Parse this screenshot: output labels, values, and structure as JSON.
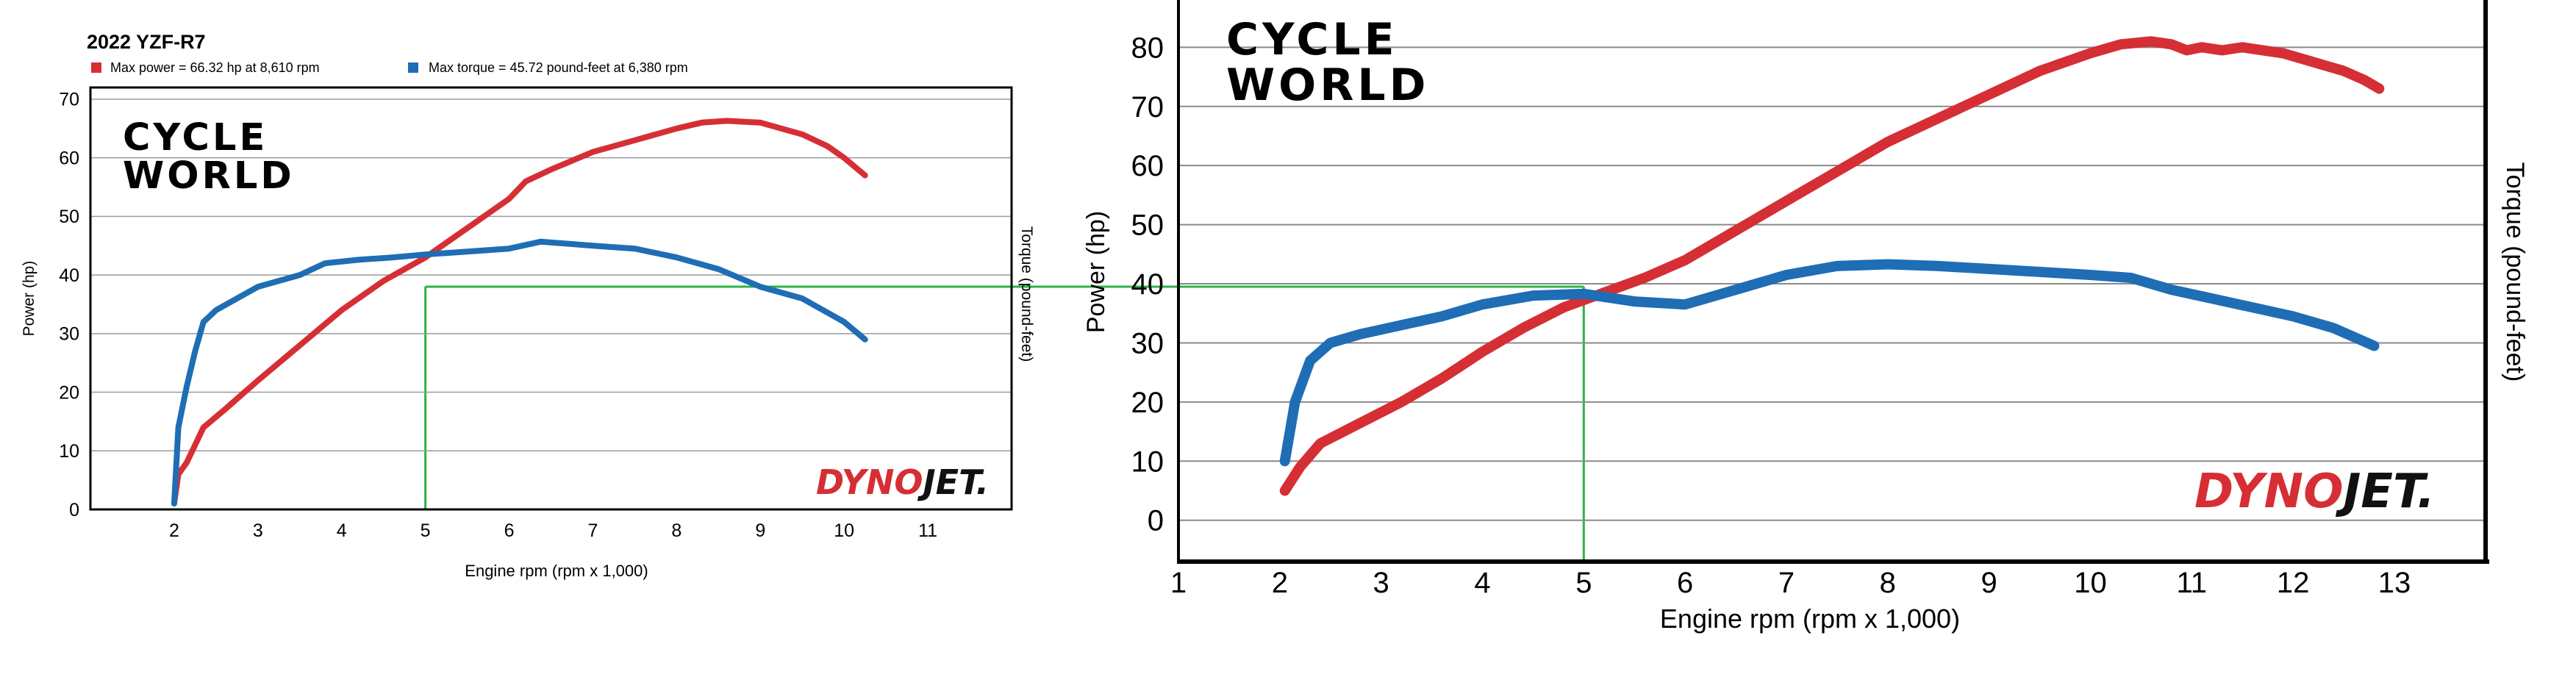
{
  "chart_data": [
    {
      "type": "line",
      "title": "2022 YZF-R7",
      "xlabel": "Engine rpm (rpm x 1,000)",
      "ylabel": "Power (hp)",
      "y2label": "Torque (pound-feet)",
      "xlim": [
        1,
        12
      ],
      "ylim": [
        0,
        72
      ],
      "x_ticks": [
        "2",
        "3",
        "4",
        "5",
        "6",
        "7",
        "8",
        "9",
        "10",
        "11"
      ],
      "y_ticks": [
        "0",
        "10",
        "20",
        "30",
        "40",
        "50",
        "60",
        "70"
      ],
      "grid": true,
      "legend_position": "top-left",
      "legend": [
        {
          "text": "Max power = 66.32 hp at 8,610 rpm",
          "color": "#d62e35"
        },
        {
          "text": "Max torque = 45.72 pound-feet at 6,380 rpm",
          "color": "#1f6db5"
        }
      ],
      "brand": [
        "CYCLE",
        "WORLD"
      ],
      "logo": [
        "DYNO",
        "JET",
        "."
      ],
      "series": [
        {
          "color": "#d62e35",
          "x": [
            2.0,
            2.05,
            2.15,
            2.25,
            2.35,
            2.6,
            3.0,
            3.5,
            4.0,
            4.5,
            5.0,
            5.5,
            6.0,
            6.2,
            6.5,
            7.0,
            7.5,
            8.0,
            8.3,
            8.6,
            9.0,
            9.5,
            9.8,
            10.0,
            10.25
          ],
          "y": [
            1,
            6,
            8,
            11,
            14,
            17,
            22,
            28,
            34,
            39,
            43,
            48,
            53,
            56,
            58,
            61,
            63,
            65,
            66,
            66.3,
            66,
            64,
            62,
            60,
            57
          ]
        },
        {
          "color": "#1f6db5",
          "x": [
            2.0,
            2.05,
            2.15,
            2.25,
            2.35,
            2.5,
            3.0,
            3.5,
            3.8,
            4.2,
            4.6,
            5.0,
            5.5,
            6.0,
            6.38,
            7.0,
            7.5,
            8.0,
            8.5,
            9.0,
            9.5,
            10.0,
            10.25
          ],
          "y": [
            1,
            14,
            21,
            27,
            32,
            34,
            38,
            40,
            42,
            42.6,
            43,
            43.5,
            44,
            44.5,
            45.7,
            45,
            44.5,
            43,
            41,
            38,
            36,
            32,
            29
          ]
        }
      ],
      "annotations": [
        {
          "type": "horizontal-line",
          "y": 38,
          "x_from": 5,
          "color": "#2db34a"
        },
        {
          "type": "vertical-line",
          "x": 5,
          "y_from": 0,
          "y_to": 38,
          "color": "#2db34a"
        }
      ]
    },
    {
      "type": "line",
      "title": "",
      "xlabel": "Engine rpm (rpm x 1,000)",
      "ylabel": "Power (hp)",
      "y2label": "Torque (pound-feet)",
      "xlim": [
        1,
        13.9
      ],
      "ylim": [
        -7,
        88
      ],
      "x_ticks": [
        "1",
        "2",
        "3",
        "4",
        "5",
        "6",
        "7",
        "8",
        "9",
        "10",
        "11",
        "12",
        "13"
      ],
      "y_ticks": [
        "0",
        "10",
        "20",
        "30",
        "40",
        "50",
        "60",
        "70",
        "80"
      ],
      "grid": true,
      "brand": [
        "CYCLE",
        "WORLD"
      ],
      "logo": [
        "DYNO",
        "JET",
        "."
      ],
      "series": [
        {
          "color": "#d62e35",
          "x": [
            2.05,
            2.2,
            2.4,
            2.8,
            3.2,
            3.6,
            4.0,
            4.4,
            4.8,
            5.2,
            5.6,
            6.0,
            6.4,
            6.8,
            7.2,
            7.6,
            8.0,
            8.5,
            9.0,
            9.5,
            10.0,
            10.3,
            10.6,
            10.8,
            10.95,
            11.1,
            11.3,
            11.5,
            11.7,
            11.9,
            12.1,
            12.3,
            12.5,
            12.7,
            12.85
          ],
          "y": [
            5,
            9,
            13,
            16.5,
            20,
            24,
            28.5,
            32.5,
            36,
            38.5,
            41,
            44,
            48,
            52,
            56,
            60,
            64,
            68,
            72,
            76,
            79,
            80.5,
            81,
            80.5,
            79.5,
            80,
            79.5,
            80,
            79.5,
            79,
            78,
            77,
            76,
            74.5,
            73
          ]
        },
        {
          "color": "#1f6db5",
          "x": [
            2.05,
            2.15,
            2.3,
            2.5,
            2.8,
            3.2,
            3.6,
            4.0,
            4.5,
            5.0,
            5.5,
            6.0,
            6.5,
            7.0,
            7.5,
            8.0,
            8.5,
            9.0,
            9.5,
            10.0,
            10.4,
            10.8,
            11.2,
            11.6,
            12.0,
            12.4,
            12.8
          ],
          "y": [
            10,
            20,
            27,
            30,
            31.5,
            33,
            34.5,
            36.5,
            38,
            38.3,
            37,
            36.5,
            39,
            41.5,
            43,
            43.3,
            43,
            42.5,
            42,
            41.5,
            41,
            39,
            37.5,
            36,
            34.5,
            32.5,
            29.5
          ]
        }
      ],
      "annotations": [
        {
          "type": "horizontal-line",
          "y": 38.5,
          "x_to": 5,
          "color": "#2db34a"
        },
        {
          "type": "vertical-line",
          "x": 5,
          "y_from": -7,
          "y_to": 38.5,
          "color": "#2db34a"
        }
      ]
    }
  ]
}
